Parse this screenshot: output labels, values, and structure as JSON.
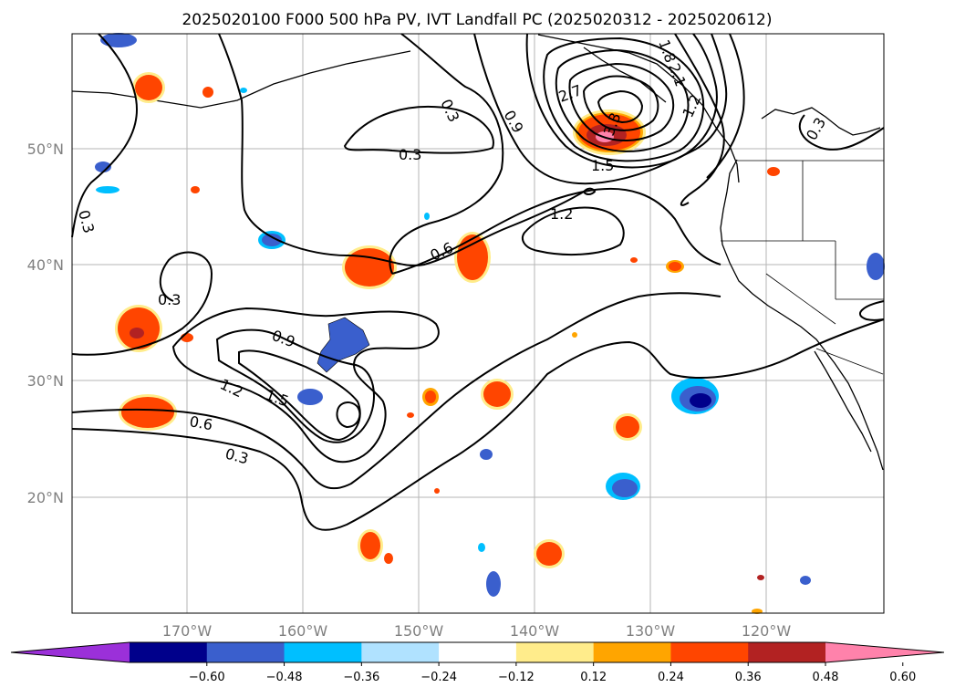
{
  "title": "2025020100 F000 500 hPa PV, IVT Landfall PC (2025020312 - 2025020612)",
  "map": {
    "lon_range": [
      -180,
      -110
    ],
    "lat_range": [
      10,
      60
    ],
    "lon_ticks": [
      "170°W",
      "160°W",
      "150°W",
      "140°W",
      "130°W",
      "120°W"
    ],
    "lat_ticks": [
      "50°N",
      "40°N",
      "30°N",
      "20°N"
    ],
    "gridlines": true
  },
  "contour_labels": [
    "0.3",
    "0.3",
    "0.3",
    "0.3",
    "0.3",
    "0.3",
    "0.6",
    "0.6",
    "0.9",
    "0.9",
    "1.2",
    "1.2",
    "1.2",
    "1.5",
    "1.5",
    "2.7",
    "2.1",
    "1.8",
    "3.3"
  ],
  "colorbar": {
    "ticks": [
      "−0.60",
      "−0.48",
      "−0.36",
      "−0.24",
      "−0.12",
      "0.12",
      "0.24",
      "0.36",
      "0.48",
      "0.60"
    ],
    "colors": [
      "#9b30d9",
      "#00008b",
      "#3a5fcd",
      "#00bfff",
      "#b0e2ff",
      "#ffffff",
      "#ffec8b",
      "#ffa500",
      "#ff4500",
      "#b22222",
      "#ff82ab"
    ],
    "extend": "both"
  }
}
